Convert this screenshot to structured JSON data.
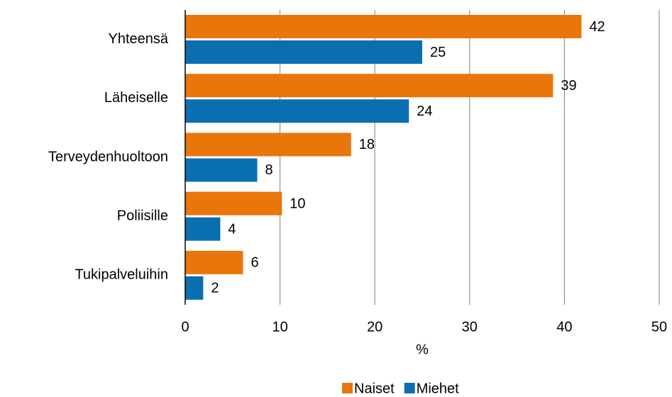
{
  "chart_data": {
    "type": "hbar",
    "categories": [
      "Yhteensä",
      "Läheiselle",
      "Terveydenhuoltoon",
      "Poliisille",
      "Tukipalveluihin"
    ],
    "series": [
      {
        "name": "Naiset",
        "color": "#e8760a",
        "values": [
          41.8,
          38.8,
          17.5,
          10.2,
          6.1
        ],
        "value_labels": [
          "42",
          "39",
          "18",
          "10",
          "6"
        ]
      },
      {
        "name": "Miehet",
        "color": "#0a6fb0",
        "values": [
          25,
          23.6,
          7.6,
          3.7,
          1.9
        ],
        "value_labels": [
          "25",
          "24",
          "8",
          "4",
          "2"
        ]
      }
    ],
    "xlabel": "%",
    "xlim": [
      0,
      50
    ],
    "xticks": [
      0,
      10,
      20,
      30,
      40,
      50
    ],
    "grid": true,
    "legend": "bottom"
  }
}
